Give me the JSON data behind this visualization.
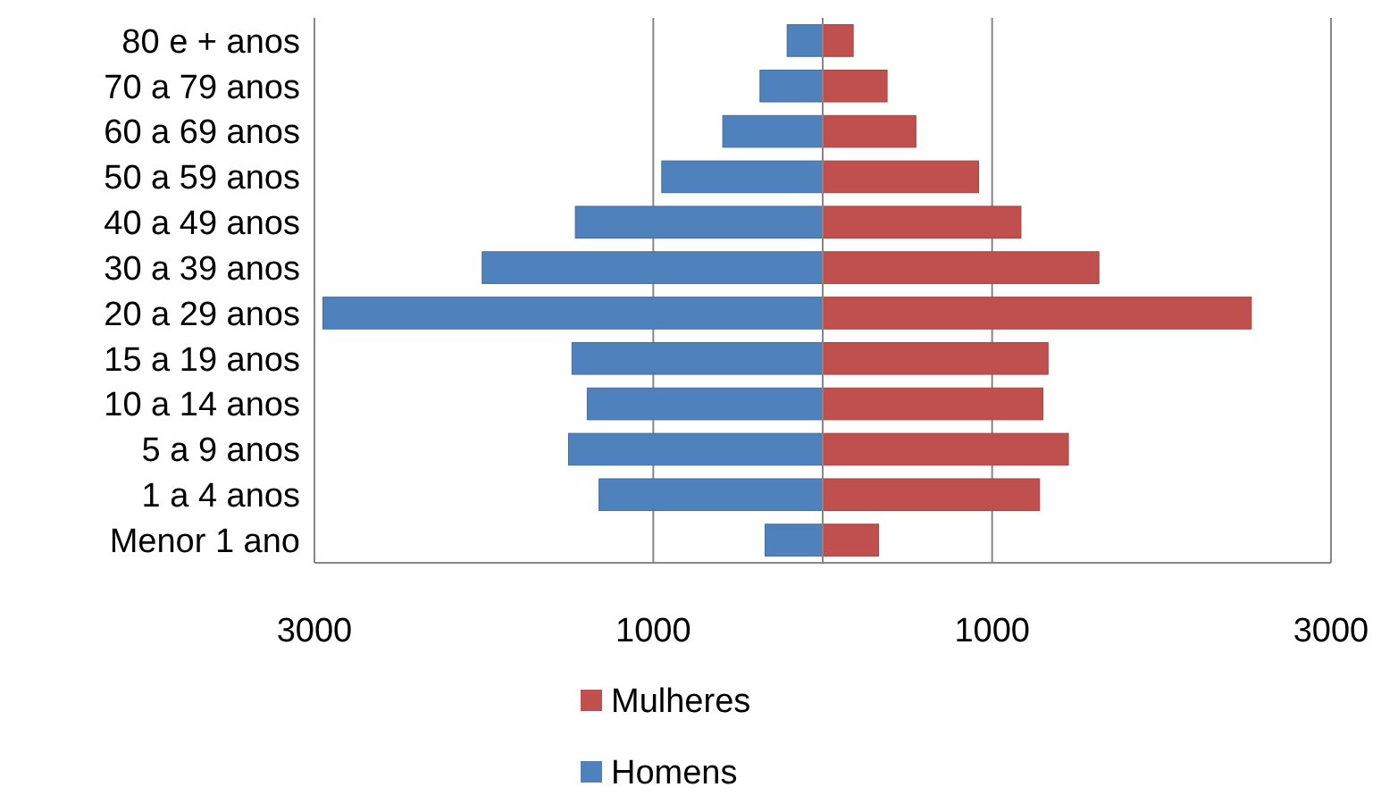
{
  "chart_data": {
    "type": "bar",
    "stacked": true,
    "orientation": "horizontal",
    "categories": [
      "80 e + anos",
      "70 a 79 anos",
      "60 a 69 anos",
      "50 a 59 anos",
      "40 a 49 anos",
      "30 a 39 anos",
      "20 a 29 anos",
      "15 a 19 anos",
      "10 a 14 anos",
      "5 a 9 anos",
      "1 a 4 anos",
      "Menor 1 ano"
    ],
    "series": [
      {
        "name": "Mulheres",
        "color": "#c0504d",
        "values": [
          180,
          380,
          550,
          920,
          1170,
          1630,
          2530,
          1330,
          1300,
          1450,
          1280,
          330
        ]
      },
      {
        "name": "Homens",
        "color": "#4f81bd",
        "values": [
          -210,
          -370,
          -590,
          -950,
          -1460,
          -2010,
          -2950,
          -1480,
          -1390,
          -1500,
          -1320,
          -340
        ]
      }
    ],
    "xlim": [
      -3000,
      3000
    ],
    "xticks": [
      {
        "value": -3000,
        "label": "3000"
      },
      {
        "value": -1000,
        "label": "1000"
      },
      {
        "value": 1000,
        "label": "1000"
      },
      {
        "value": 3000,
        "label": "3000"
      }
    ],
    "grid": "x",
    "legend": "bottom"
  }
}
